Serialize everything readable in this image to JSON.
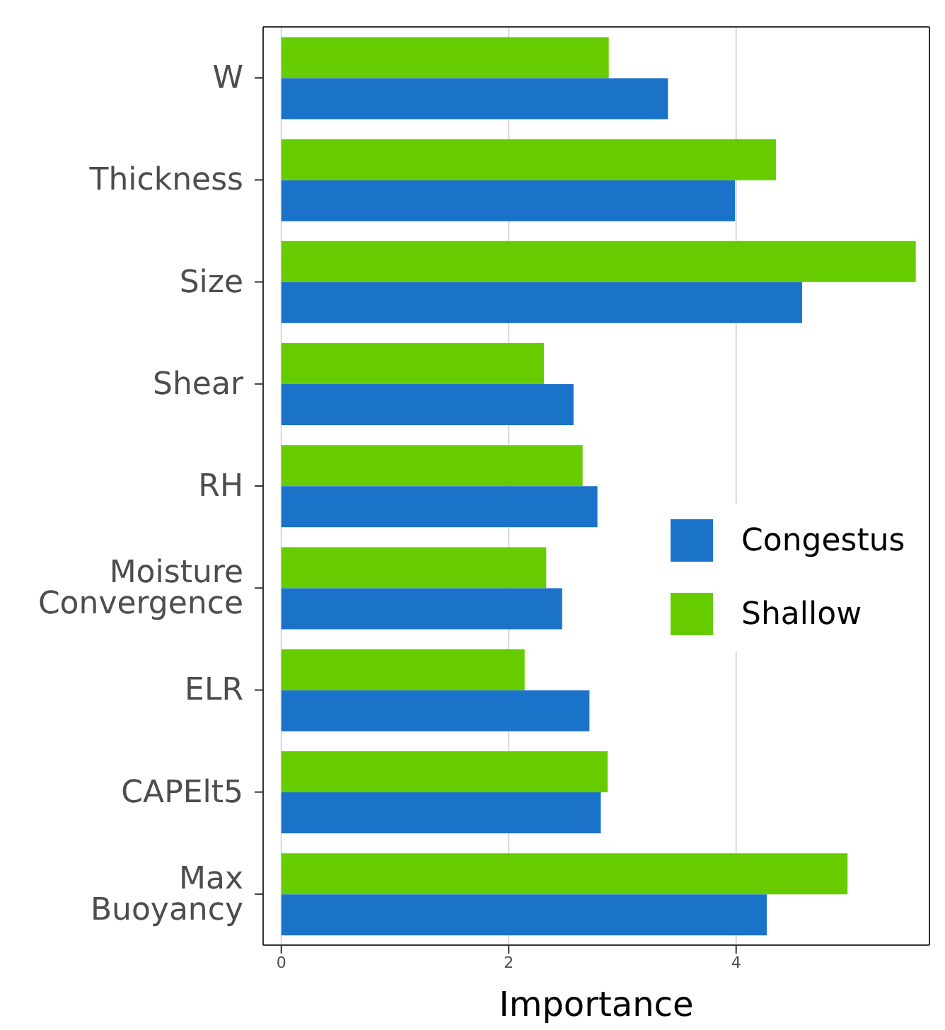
{
  "chart_data": {
    "type": "bar",
    "orientation": "horizontal",
    "xlabel": "Importance",
    "categories": [
      "W",
      "Thickness",
      "Size",
      "Shear",
      "RH",
      "Moisture Convergence",
      "ELR",
      "CAPElt5",
      "Max Buoyancy"
    ],
    "series": [
      {
        "name": "Congestus",
        "color": "#1a73c9",
        "values": [
          3.4,
          3.99,
          4.58,
          2.57,
          2.78,
          2.47,
          2.71,
          2.81,
          4.27
        ]
      },
      {
        "name": "Shallow",
        "color": "#66cc00",
        "values": [
          2.88,
          4.35,
          5.58,
          2.31,
          2.65,
          2.33,
          2.14,
          2.87,
          4.98
        ]
      }
    ],
    "xlim": [
      -0.16,
      5.7
    ],
    "xticks": [
      0,
      2,
      4
    ],
    "grid": "x",
    "legend": "right"
  }
}
